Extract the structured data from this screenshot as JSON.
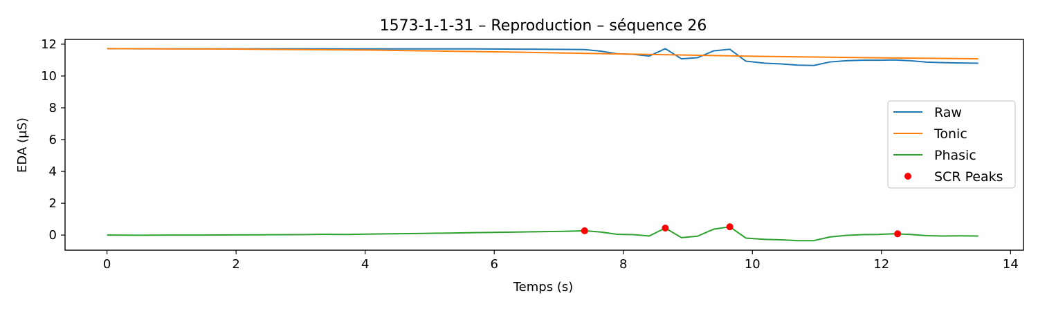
{
  "chart_data": {
    "type": "line",
    "title": "1573-1-1-31 – Reproduction – séquence 26",
    "xlabel": "Temps (s)",
    "ylabel": "EDA (µS)",
    "xlim": [
      -0.65,
      14.2
    ],
    "ylim": [
      -0.95,
      12.3
    ],
    "x_ticks": [
      0,
      2,
      4,
      6,
      8,
      10,
      12,
      14
    ],
    "y_ticks": [
      0,
      2,
      4,
      6,
      8,
      10,
      12
    ],
    "x_tick_labels": [
      "0",
      "2",
      "4",
      "6",
      "8",
      "10",
      "12",
      "14"
    ],
    "y_tick_labels": [
      "0",
      "2",
      "4",
      "6",
      "8",
      "10",
      "12"
    ],
    "grid": false,
    "legend": "center-right",
    "series": [
      {
        "name": "Raw",
        "color": "#1f77b4",
        "points": [
          [
            0,
            11.72
          ],
          [
            0.5,
            11.71
          ],
          [
            1,
            11.71
          ],
          [
            1.5,
            11.71
          ],
          [
            2,
            11.71
          ],
          [
            2.5,
            11.71
          ],
          [
            3,
            11.71
          ],
          [
            3.35,
            11.71
          ],
          [
            3.7,
            11.7
          ],
          [
            4.2,
            11.7
          ],
          [
            4.7,
            11.7
          ],
          [
            5.2,
            11.7
          ],
          [
            5.7,
            11.7
          ],
          [
            6.2,
            11.69
          ],
          [
            6.7,
            11.68
          ],
          [
            7.15,
            11.67
          ],
          [
            7.4,
            11.66
          ],
          [
            7.65,
            11.56
          ],
          [
            7.9,
            11.4
          ],
          [
            8.15,
            11.36
          ],
          [
            8.4,
            11.25
          ],
          [
            8.65,
            11.72
          ],
          [
            8.9,
            11.08
          ],
          [
            9.15,
            11.15
          ],
          [
            9.4,
            11.58
          ],
          [
            9.65,
            11.68
          ],
          [
            9.9,
            10.93
          ],
          [
            10.2,
            10.8
          ],
          [
            10.45,
            10.76
          ],
          [
            10.7,
            10.68
          ],
          [
            10.95,
            10.66
          ],
          [
            11.2,
            10.88
          ],
          [
            11.45,
            10.96
          ],
          [
            11.7,
            10.99
          ],
          [
            11.95,
            10.99
          ],
          [
            12.2,
            11.01
          ],
          [
            12.45,
            10.96
          ],
          [
            12.7,
            10.87
          ],
          [
            12.95,
            10.84
          ],
          [
            13.2,
            10.82
          ],
          [
            13.5,
            10.8
          ]
        ]
      },
      {
        "name": "Tonic",
        "color": "#ff7f0e",
        "points": [
          [
            0,
            11.72
          ],
          [
            2,
            11.69
          ],
          [
            4,
            11.63
          ],
          [
            6,
            11.52
          ],
          [
            8,
            11.38
          ],
          [
            10,
            11.24
          ],
          [
            12,
            11.14
          ],
          [
            13.5,
            11.08
          ]
        ]
      },
      {
        "name": "Phasic",
        "color": "#2ca02c",
        "points": [
          [
            0,
            0.0
          ],
          [
            0.5,
            -0.01
          ],
          [
            1,
            0.0
          ],
          [
            1.5,
            0.0
          ],
          [
            2,
            0.01
          ],
          [
            2.5,
            0.02
          ],
          [
            3,
            0.03
          ],
          [
            3.35,
            0.05
          ],
          [
            3.7,
            0.04
          ],
          [
            4.2,
            0.07
          ],
          [
            4.7,
            0.09
          ],
          [
            5.2,
            0.12
          ],
          [
            5.7,
            0.15
          ],
          [
            6.2,
            0.18
          ],
          [
            6.7,
            0.21
          ],
          [
            7.15,
            0.24
          ],
          [
            7.4,
            0.27
          ],
          [
            7.65,
            0.19
          ],
          [
            7.9,
            0.05
          ],
          [
            8.15,
            0.03
          ],
          [
            8.4,
            -0.06
          ],
          [
            8.65,
            0.44
          ],
          [
            8.9,
            -0.16
          ],
          [
            9.15,
            -0.07
          ],
          [
            9.4,
            0.37
          ],
          [
            9.65,
            0.52
          ],
          [
            9.9,
            -0.19
          ],
          [
            10.2,
            -0.27
          ],
          [
            10.45,
            -0.3
          ],
          [
            10.7,
            -0.35
          ],
          [
            10.95,
            -0.35
          ],
          [
            11.2,
            -0.12
          ],
          [
            11.45,
            -0.02
          ],
          [
            11.7,
            0.03
          ],
          [
            11.95,
            0.04
          ],
          [
            12.2,
            0.08
          ],
          [
            12.45,
            0.04
          ],
          [
            12.7,
            -0.04
          ],
          [
            12.95,
            -0.06
          ],
          [
            13.2,
            -0.05
          ],
          [
            13.5,
            -0.06
          ]
        ]
      },
      {
        "name": "SCR Peaks",
        "color": "#ff0000",
        "marker": "dot",
        "points": [
          [
            7.4,
            0.27
          ],
          [
            8.65,
            0.44
          ],
          [
            9.65,
            0.52
          ],
          [
            12.25,
            0.08
          ]
        ]
      }
    ]
  }
}
